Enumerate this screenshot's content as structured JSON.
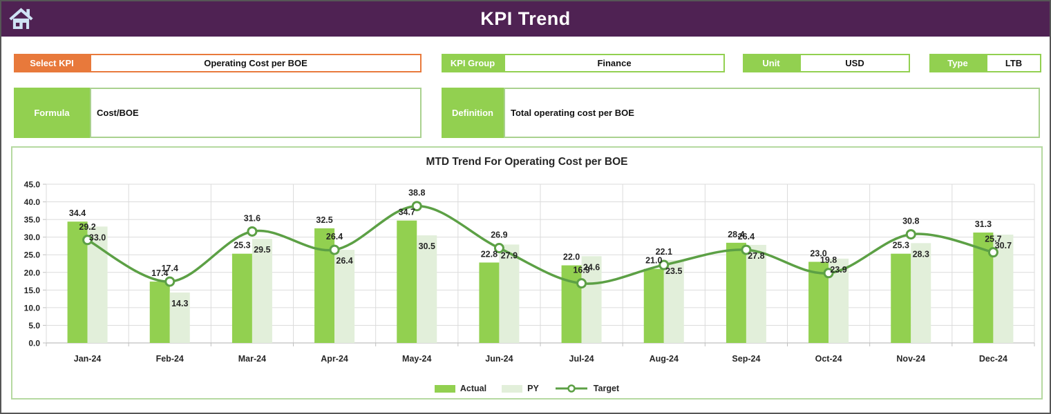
{
  "header": {
    "title": "KPI Trend",
    "home_icon": "home-icon"
  },
  "filters": {
    "select_kpi": {
      "label": "Select KPI",
      "value": "Operating Cost per BOE"
    },
    "kpi_group": {
      "label": "KPI Group",
      "value": "Finance"
    },
    "unit": {
      "label": "Unit",
      "value": "USD"
    },
    "type": {
      "label": "Type",
      "value": "LTB"
    }
  },
  "formula": {
    "label": "Formula",
    "value": "Cost/BOE"
  },
  "definition": {
    "label": "Definition",
    "value": "Total operating cost per BOE"
  },
  "chart_data": {
    "type": "combo-bar-line",
    "title": "MTD Trend For Operating Cost per BOE",
    "categories": [
      "Jan-24",
      "Feb-24",
      "Mar-24",
      "Apr-24",
      "May-24",
      "Jun-24",
      "Jul-24",
      "Aug-24",
      "Sep-24",
      "Oct-24",
      "Nov-24",
      "Dec-24"
    ],
    "series": [
      {
        "name": "Actual",
        "type": "bar",
        "color": "#92D050",
        "values": [
          34.4,
          17.4,
          25.3,
          32.5,
          34.7,
          22.8,
          22.0,
          21.0,
          28.4,
          23.0,
          25.3,
          31.3
        ]
      },
      {
        "name": "PY",
        "type": "bar",
        "color": "#E2EFDA",
        "values": [
          33.0,
          14.3,
          29.5,
          26.4,
          30.5,
          27.9,
          24.6,
          23.5,
          27.8,
          23.9,
          28.3,
          30.7
        ]
      },
      {
        "name": "Target",
        "type": "line",
        "color": "#5CA045",
        "marker": "circle",
        "values": [
          29.2,
          17.4,
          31.6,
          26.4,
          38.8,
          26.9,
          16.9,
          22.1,
          26.4,
          19.8,
          30.8,
          25.7
        ]
      }
    ],
    "ylim": [
      0,
      45
    ],
    "ytick_step": 5,
    "ytick_labels": [
      "0.0",
      "5.0",
      "10.0",
      "15.0",
      "20.0",
      "25.0",
      "30.0",
      "35.0",
      "40.0",
      "45.0"
    ],
    "grid": true,
    "legend_position": "bottom",
    "data_labels": true
  },
  "colors": {
    "header_bg": "#4F2253",
    "accent_orange": "#E8793B",
    "accent_orange_fill": "#FBEEE3",
    "accent_green": "#92D050",
    "panel_border_green": "#B5D9A0",
    "grid_line": "#DBDBDB",
    "axis_line": "#BFBFBF",
    "label_text": "#262626",
    "home_icon_fill": "#CFE3F5"
  }
}
